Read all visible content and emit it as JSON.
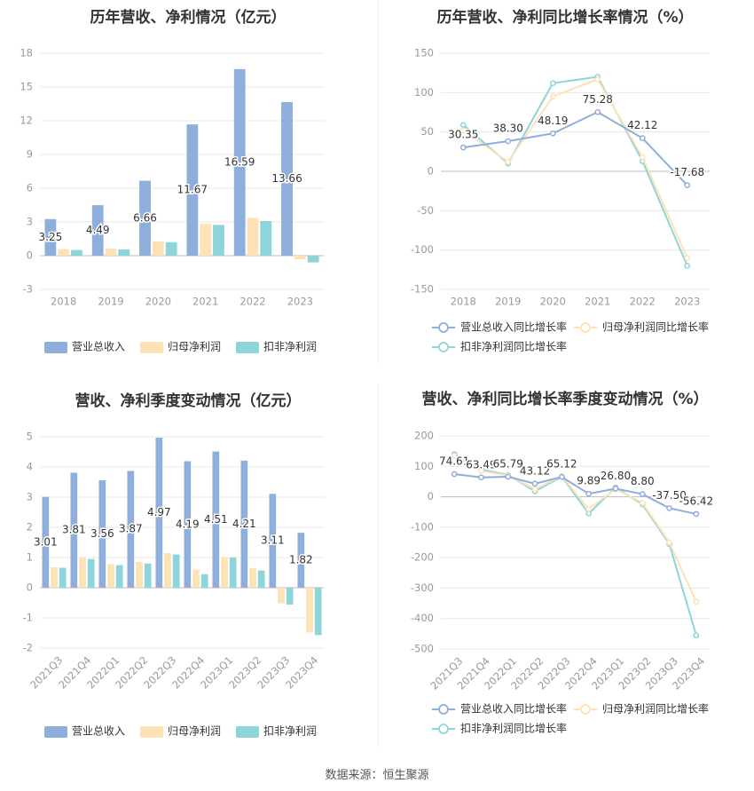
{
  "source": "数据来源：恒生聚源",
  "colors": {
    "revenue": "#8eaedb",
    "net_profit": "#fde2b6",
    "deducted_profit": "#8dd5d9",
    "grid": "#e8e8e8",
    "axis_text": "#999999",
    "label_text": "#333333"
  },
  "chart_data": [
    {
      "id": "annual-amount",
      "type": "bar",
      "title": "历年营收、净利情况（亿元）",
      "categories": [
        "2018",
        "2019",
        "2020",
        "2021",
        "2022",
        "2023"
      ],
      "yticks": [
        "18",
        "15",
        "12",
        "9",
        "6",
        "3",
        "0",
        "-3"
      ],
      "ylim": [
        -3,
        18
      ],
      "series": [
        {
          "name": "营业总收入",
          "values": [
            3.25,
            4.49,
            6.66,
            11.67,
            16.59,
            13.66
          ],
          "labels": [
            "3.25",
            "4.49",
            "6.66",
            "11.67",
            "16.59",
            "13.66"
          ]
        },
        {
          "name": "归母净利润",
          "values": [
            0.58,
            0.64,
            1.27,
            2.82,
            3.36,
            -0.33
          ]
        },
        {
          "name": "扣非净利润",
          "values": [
            0.5,
            0.56,
            1.2,
            2.73,
            3.08,
            -0.6
          ]
        }
      ],
      "legend": "bottom",
      "grid": true
    },
    {
      "id": "annual-growth",
      "type": "line",
      "title": "历年营收、净利同比增长率情况（%）",
      "categories": [
        "2018",
        "2019",
        "2020",
        "2021",
        "2022",
        "2023"
      ],
      "yticks": [
        "150",
        "100",
        "50",
        "0",
        "-50",
        "-100",
        "-150"
      ],
      "ylim": [
        -150,
        150
      ],
      "series": [
        {
          "name": "营业总收入同比增长率",
          "values": [
            30.35,
            38.3,
            48.19,
            75.28,
            42.12,
            -17.68
          ],
          "labels": [
            "30.35",
            "38.30",
            "48.19",
            "75.28",
            "42.12",
            "-17.68"
          ]
        },
        {
          "name": "归母净利润同比增长率",
          "values": [
            52,
            12,
            95,
            117,
            18,
            -110
          ]
        },
        {
          "name": "扣非净利润同比增长率",
          "values": [
            59,
            10,
            112,
            120,
            13,
            -120
          ]
        }
      ],
      "legend": "bottom",
      "grid": true
    },
    {
      "id": "quarterly-amount",
      "type": "bar",
      "title": "营收、净利季度变动情况（亿元）",
      "categories": [
        "2021Q3",
        "2021Q4",
        "2022Q1",
        "2022Q2",
        "2022Q3",
        "2022Q4",
        "2023Q1",
        "2023Q2",
        "2023Q3",
        "2023Q4"
      ],
      "yticks": [
        "5",
        "4",
        "3",
        "2",
        "1",
        "0",
        "-1",
        "-2"
      ],
      "ylim": [
        -2,
        5
      ],
      "series": [
        {
          "name": "营业总收入",
          "values": [
            3.01,
            3.81,
            3.56,
            3.87,
            4.97,
            4.19,
            4.51,
            4.21,
            3.11,
            1.82
          ],
          "labels": [
            "3.01",
            "3.81",
            "3.56",
            "3.87",
            "4.97",
            "4.19",
            "4.51",
            "4.21",
            "3.11",
            "1.82"
          ]
        },
        {
          "name": "归母净利润",
          "values": [
            0.68,
            1.0,
            0.78,
            0.85,
            1.15,
            0.6,
            1.02,
            0.65,
            -0.52,
            -1.48
          ]
        },
        {
          "name": "扣非净利润",
          "values": [
            0.66,
            0.95,
            0.75,
            0.8,
            1.1,
            0.45,
            1.0,
            0.57,
            -0.56,
            -1.57
          ]
        }
      ],
      "legend": "bottom",
      "grid": true
    },
    {
      "id": "quarterly-growth",
      "type": "line",
      "title": "营收、净利同比增长率季度变动情况（%）",
      "categories": [
        "2021Q3",
        "2021Q4",
        "2022Q1",
        "2022Q2",
        "2022Q3",
        "2022Q4",
        "2023Q1",
        "2023Q2",
        "2023Q3",
        "2023Q4"
      ],
      "yticks": [
        "200",
        "100",
        "0",
        "-100",
        "-200",
        "-300",
        "-400",
        "-500"
      ],
      "ylim": [
        -500,
        200
      ],
      "series": [
        {
          "name": "营业总收入同比增长率",
          "values": [
            74.61,
            63.49,
            65.79,
            43.12,
            65.12,
            9.89,
            26.8,
            8.8,
            -37.5,
            -56.42
          ],
          "labels": [
            "74.61",
            "63.49",
            "65.79",
            "43.12",
            "65.12",
            "9.89",
            "26.80",
            "8.80",
            "-37.50",
            "-56.42"
          ]
        },
        {
          "name": "归母净利润同比增长率",
          "values": [
            135,
            85,
            70,
            25,
            68,
            -40,
            25,
            -20,
            -150,
            -345
          ]
        },
        {
          "name": "扣非净利润同比增长率",
          "values": [
            140,
            90,
            72,
            18,
            66,
            -55,
            30,
            -25,
            -155,
            -455
          ]
        }
      ],
      "legend": "bottom",
      "grid": true
    }
  ]
}
